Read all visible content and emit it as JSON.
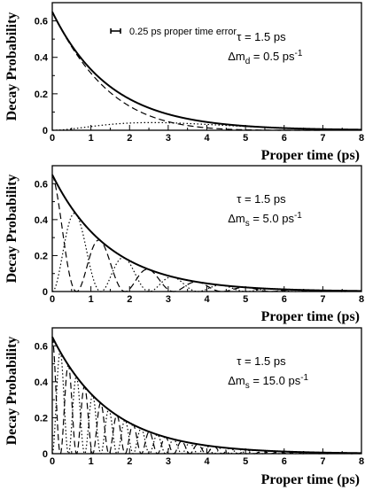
{
  "chart_data": [
    {
      "type": "line",
      "ylabel": "Decay Probability",
      "xlabel": "Proper time  (ps)",
      "xlim": [
        0,
        8
      ],
      "ylim": [
        0,
        0.7
      ],
      "xticks": [
        0,
        1,
        2,
        3,
        4,
        5,
        6,
        7,
        8
      ],
      "yticks": [
        0,
        0.2,
        0.4,
        0.6
      ],
      "ytick_labels": [
        "0",
        "0.2",
        "0.4",
        "0.6"
      ],
      "tau_ps": 1.5,
      "delta_m_per_ps": 0.5,
      "amplitude": 0.65,
      "annotation": {
        "tau": "τ = 1.5 ps",
        "dm_prefix": "Δm",
        "dm_sub": "d",
        "dm_value": " = 0.5 ps",
        "dm_sup": "-1"
      },
      "legend": {
        "label": "0.25 ps  proper time error",
        "error_ps": 0.25
      },
      "series": [
        {
          "style": "solid",
          "formula": "A·exp(-t/τ)"
        },
        {
          "style": "dashed",
          "formula": "A·exp(-t/τ)·(1+cos(Δm·t))/2"
        },
        {
          "style": "dotted",
          "formula": "A·exp(-t/τ)·(1-cos(Δm·t))/2"
        }
      ]
    },
    {
      "type": "line",
      "ylabel": "Decay Probability",
      "xlabel": "Proper time  (ps)",
      "xlim": [
        0,
        8
      ],
      "ylim": [
        0,
        0.7
      ],
      "xticks": [
        0,
        1,
        2,
        3,
        4,
        5,
        6,
        7,
        8
      ],
      "yticks": [
        0,
        0.2,
        0.4,
        0.6
      ],
      "ytick_labels": [
        "0",
        "0.2",
        "0.4",
        "0.6"
      ],
      "tau_ps": 1.5,
      "delta_m_per_ps": 5.0,
      "amplitude": 0.65,
      "annotation": {
        "tau": "τ = 1.5 ps",
        "dm_prefix": "Δm",
        "dm_sub": "s",
        "dm_value": " = 5.0 ps",
        "dm_sup": "-1"
      },
      "series": [
        {
          "style": "solid",
          "formula": "A·exp(-t/τ)"
        },
        {
          "style": "dashed",
          "formula": "A·exp(-t/τ)·(1+cos(Δm·t))/2"
        },
        {
          "style": "dotted",
          "formula": "A·exp(-t/τ)·(1-cos(Δm·t))/2"
        }
      ]
    },
    {
      "type": "line",
      "ylabel": "Decay Probability",
      "xlabel": "Proper time  (ps)",
      "xlim": [
        0,
        8
      ],
      "ylim": [
        0,
        0.7
      ],
      "xticks": [
        0,
        1,
        2,
        3,
        4,
        5,
        6,
        7,
        8
      ],
      "yticks": [
        0,
        0.2,
        0.4,
        0.6
      ],
      "ytick_labels": [
        "0",
        "0.2",
        "0.4",
        "0.6"
      ],
      "tau_ps": 1.5,
      "delta_m_per_ps": 15.0,
      "amplitude": 0.65,
      "annotation": {
        "tau": "τ = 1.5 ps",
        "dm_prefix": "Δm",
        "dm_sub": "s",
        "dm_value": " = 15.0 ps",
        "dm_sup": "-1"
      },
      "series": [
        {
          "style": "solid",
          "formula": "A·exp(-t/τ)"
        },
        {
          "style": "dashed",
          "formula": "A·exp(-t/τ)·(1+cos(Δm·t))/2"
        },
        {
          "style": "dotted",
          "formula": "A·exp(-t/τ)·(1-cos(Δm·t))/2"
        }
      ]
    }
  ]
}
